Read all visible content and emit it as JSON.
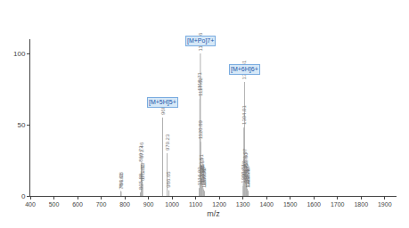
{
  "chart_data": {
    "type": "stem",
    "x_label": "m/z",
    "xlim": [
      400,
      1950
    ],
    "xticks": [
      400,
      500,
      600,
      700,
      800,
      900,
      1000,
      1100,
      1200,
      1300,
      1400,
      1500,
      1600,
      1700,
      1800,
      1900
    ],
    "ylim": [
      0,
      110
    ],
    "yticks": [
      0,
      50,
      100
    ],
    "grid": false,
    "color": "#b0b0b0",
    "x": [
      783.08,
      784.61,
      865.88,
      869.73,
      871.46,
      873.83,
      875.62,
      960.03,
      979.23,
      986.65,
      1114.93,
      1117.62,
      1118.71,
      1119.86,
      1120.89,
      1123.51,
      1125.37,
      1126.85,
      1127.81,
      1131.27,
      1133.7,
      1137.55,
      1300.81,
      1301.77,
      1304.01,
      1306.81,
      1309.97,
      1312.6,
      1314.45,
      1316.06,
      1318.43,
      1320.22,
      1322.72
    ],
    "values": [
      3.5,
      3.0,
      2.5,
      22.0,
      24.0,
      10.0,
      8.5,
      55.0,
      30.0,
      4.0,
      5.5,
      68.0,
      72.0,
      100.0,
      38.0,
      14.0,
      12.0,
      7.0,
      6.5,
      5.5,
      4.5,
      3.5,
      7.0,
      9.0,
      48.0,
      80.0,
      18.0,
      15.0,
      8.0,
      6.5,
      5.0,
      4.0,
      3.5
    ],
    "labels": [
      "783.08",
      "784.61",
      "865.88",
      "869.73",
      "871.46",
      "873.83",
      "875.62",
      "960.03",
      "979.23",
      "986.65",
      "1114.93",
      "1117.62",
      "1118.71",
      "1119.86",
      "1120.89",
      "1123.51",
      "1125.37",
      "1126.85",
      "1127.81",
      "1131.27",
      "1133.70",
      "1137.55",
      "1300.81",
      "1301.77",
      "1304.01",
      "1306.81",
      "1309.97",
      "1312.60",
      "1314.45",
      "1316.06",
      "1318.43",
      "1320.22",
      "1322.72"
    ],
    "annotations": [
      {
        "x": 960.03,
        "y": 62,
        "text": "[M+5H]5+"
      },
      {
        "x": 1119.86,
        "y": 105,
        "text": "[M+Po]7+"
      },
      {
        "x": 1306.81,
        "y": 85,
        "text": "[M+6H]6+"
      }
    ]
  }
}
